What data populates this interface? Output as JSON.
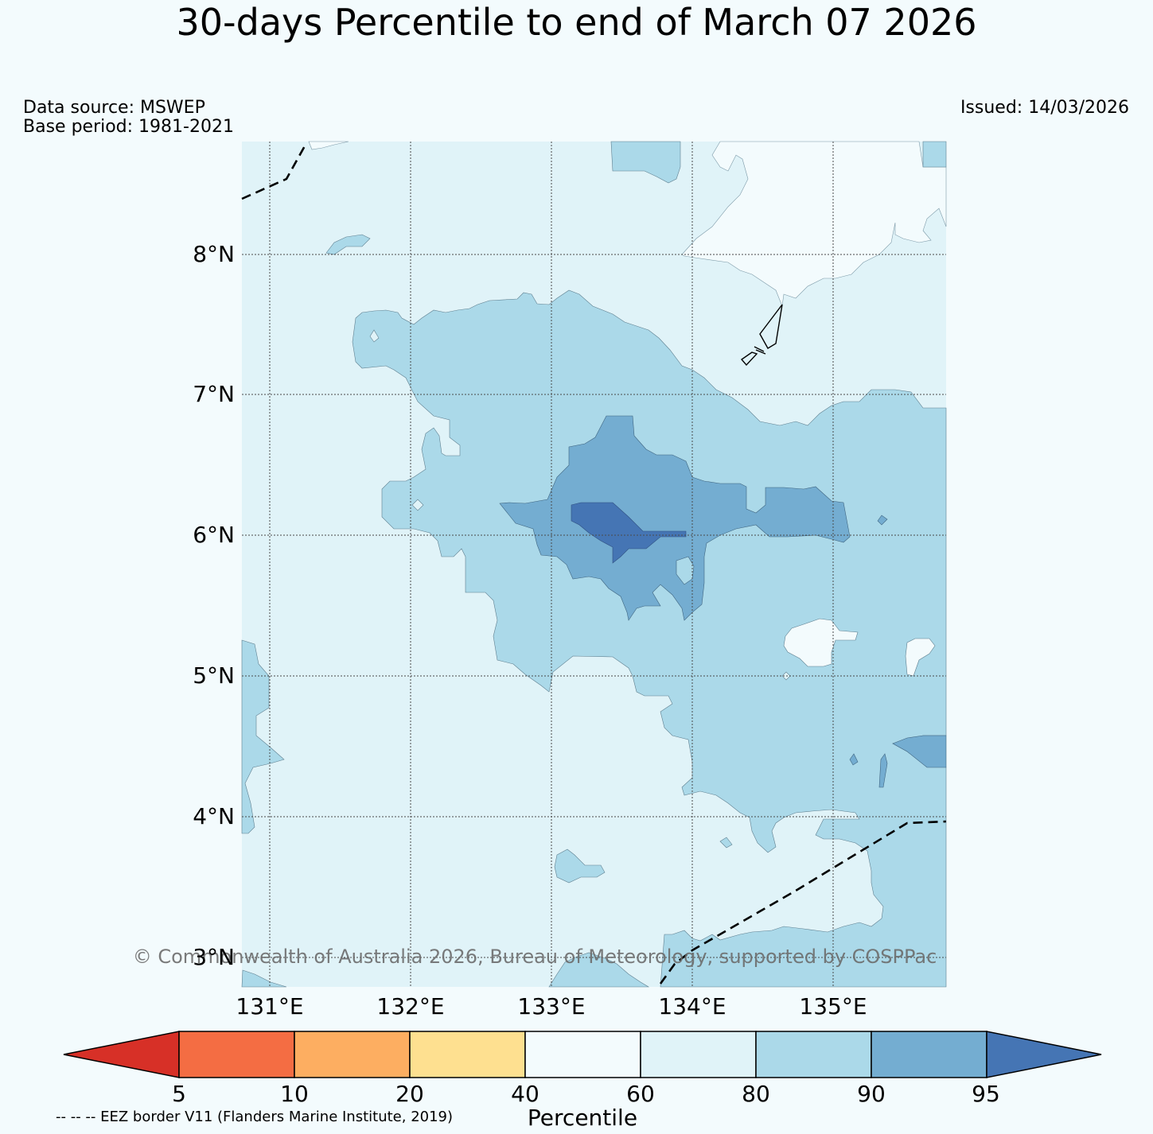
{
  "title": "30-days Percentile to end of March 07 2026",
  "data_source": "Data source: MSWEP",
  "base_period": "Base period: 1981-2021",
  "issued": "Issued: 14/03/2026",
  "latitude_labels": [
    "8°N",
    "7°N",
    "6°N",
    "5°N",
    "4°N",
    "3°N"
  ],
  "longitude_labels": [
    "131°E",
    "132°E",
    "133°E",
    "134°E",
    "135°E"
  ],
  "copyright": "© Commonwealth of Australia 2026, Bureau of Meteorology, supported by COSPPac",
  "colorbar": {
    "label": "Percentile",
    "ticks": [
      "5",
      "10",
      "20",
      "40",
      "60",
      "80",
      "90",
      "95"
    ],
    "bins": [
      {
        "range": "<5",
        "color": "#d73027"
      },
      {
        "range": "5-10",
        "color": "#f46d43"
      },
      {
        "range": "10-20",
        "color": "#fdae61"
      },
      {
        "range": "20-40",
        "color": "#fee090"
      },
      {
        "range": "40-60",
        "color": "#f3fbfd"
      },
      {
        "range": "60-80",
        "color": "#e0f3f8"
      },
      {
        "range": "80-90",
        "color": "#abd9e9"
      },
      {
        "range": "90-95",
        "color": "#74add1"
      },
      {
        "range": ">95",
        "color": "#4575b4"
      }
    ]
  },
  "legend_note": "-- -- -- EEZ border V11 (Flanders Marine Institute, 2019)"
}
